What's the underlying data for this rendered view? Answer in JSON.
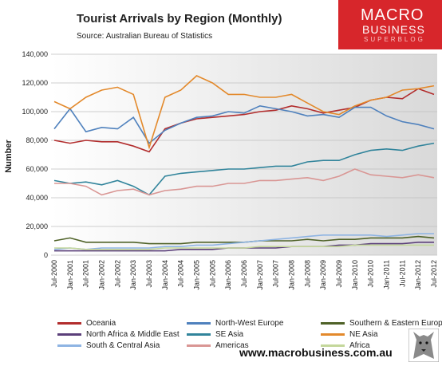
{
  "header": {
    "title": "Tourist Arrivals by Region (Monthly)",
    "source": "Source: Australian Bureau of Statistics"
  },
  "logo": {
    "line1": "MACRO",
    "line2": "BUSINESS",
    "line3": "SUPERBLOG",
    "background": "#d7262b"
  },
  "footer": {
    "url": "www.macrobusiness.com.au"
  },
  "chart_data": {
    "type": "line",
    "title": "Tourist Arrivals by Region (Monthly)",
    "ylabel": "Number",
    "xlabel": "",
    "ylim": [
      0,
      140000
    ],
    "yticks": [
      "0",
      "20,000",
      "40,000",
      "60,000",
      "80,000",
      "100,000",
      "120,000",
      "140,000"
    ],
    "xticks": [
      "Jul-2000",
      "Jan-2001",
      "Jul-2001",
      "Jan-2002",
      "Jul-2002",
      "Jan-2003",
      "Jul-2003",
      "Jan-2004",
      "Jul-2004",
      "Jan-2005",
      "Jul-2005",
      "Jan-2006",
      "Jul-2006",
      "Jan-2007",
      "Jul-2007",
      "Jan-2008",
      "Jul-2008",
      "Jan-2009",
      "Jul-2009",
      "Jan-2010",
      "Jul-2010",
      "Jan-2011",
      "Jul-2011",
      "Jan-2012",
      "Jul-2012"
    ],
    "x": [
      "Jul-2000",
      "Jan-2001",
      "Jul-2001",
      "Jan-2002",
      "Jul-2002",
      "Jan-2003",
      "Jul-2003",
      "Jan-2004",
      "Jul-2004",
      "Jan-2005",
      "Jul-2005",
      "Jan-2006",
      "Jul-2006",
      "Jan-2007",
      "Jul-2007",
      "Jan-2008",
      "Jul-2008",
      "Jan-2009",
      "Jul-2009",
      "Jan-2010",
      "Jul-2010",
      "Jan-2011",
      "Jul-2011",
      "Jan-2012",
      "Jul-2012"
    ],
    "grid": true,
    "legend_position": "bottom",
    "series": [
      {
        "name": "Oceania",
        "color": "#b22d2d",
        "values": [
          80000,
          78000,
          80000,
          79000,
          79000,
          76000,
          72000,
          88000,
          92000,
          95000,
          96000,
          97000,
          98000,
          100000,
          101000,
          104000,
          102000,
          99000,
          101000,
          103000,
          108000,
          110000,
          109000,
          116000,
          112000
        ]
      },
      {
        "name": "North-West Europe",
        "color": "#4f81bd",
        "values": [
          88000,
          102000,
          86000,
          89000,
          88000,
          96000,
          78000,
          87000,
          92000,
          96000,
          97000,
          100000,
          99000,
          104000,
          102000,
          100000,
          97000,
          98000,
          96000,
          103000,
          103000,
          97000,
          93000,
          91000,
          88000
        ]
      },
      {
        "name": "Southern & Eastern Europe",
        "color": "#4f6228",
        "values": [
          10000,
          12000,
          9000,
          9000,
          9000,
          9000,
          8000,
          8000,
          8000,
          9000,
          9000,
          9000,
          9000,
          10000,
          10000,
          10000,
          11000,
          10000,
          11000,
          11000,
          12000,
          12000,
          12000,
          13000,
          12000
        ]
      },
      {
        "name": "North Africa & Middle East",
        "color": "#5b3f7a",
        "values": [
          3000,
          3000,
          3000,
          3000,
          3000,
          3000,
          3000,
          3000,
          4000,
          4000,
          4000,
          5000,
          5000,
          5000,
          5000,
          6000,
          6000,
          6000,
          7000,
          7000,
          8000,
          8000,
          8000,
          9000,
          9000
        ]
      },
      {
        "name": "SE Asia",
        "color": "#31849b",
        "values": [
          52000,
          50000,
          51000,
          49000,
          52000,
          48000,
          42000,
          55000,
          57000,
          58000,
          59000,
          60000,
          60000,
          61000,
          62000,
          62000,
          65000,
          66000,
          66000,
          70000,
          73000,
          74000,
          73000,
          76000,
          78000
        ]
      },
      {
        "name": "NE Asia",
        "color": "#e3892b",
        "values": [
          107000,
          102000,
          110000,
          115000,
          117000,
          112000,
          75000,
          110000,
          115000,
          125000,
          120000,
          112000,
          112000,
          110000,
          110000,
          112000,
          106000,
          100000,
          98000,
          104000,
          108000,
          110000,
          115000,
          116000,
          118000
        ]
      },
      {
        "name": "South & Central Asia",
        "color": "#8eb4e3",
        "values": [
          4000,
          5000,
          4000,
          5000,
          5000,
          5000,
          5000,
          6000,
          6000,
          7000,
          7000,
          8000,
          9000,
          10000,
          11000,
          12000,
          13000,
          14000,
          14000,
          14000,
          14000,
          13000,
          14000,
          15000,
          15000
        ]
      },
      {
        "name": "Americas",
        "color": "#d99694",
        "values": [
          50000,
          50000,
          48000,
          42000,
          45000,
          46000,
          42000,
          45000,
          46000,
          48000,
          48000,
          50000,
          50000,
          52000,
          52000,
          53000,
          54000,
          52000,
          55000,
          60000,
          56000,
          55000,
          54000,
          56000,
          54000
        ]
      },
      {
        "name": "Africa",
        "color": "#c4d79b",
        "values": [
          5000,
          5000,
          4000,
          4000,
          4000,
          4000,
          4000,
          5000,
          5000,
          5000,
          5000,
          5000,
          5000,
          6000,
          6000,
          6000,
          6000,
          6000,
          6000,
          7000,
          7000,
          7000,
          7000,
          7000,
          7000
        ]
      }
    ]
  }
}
